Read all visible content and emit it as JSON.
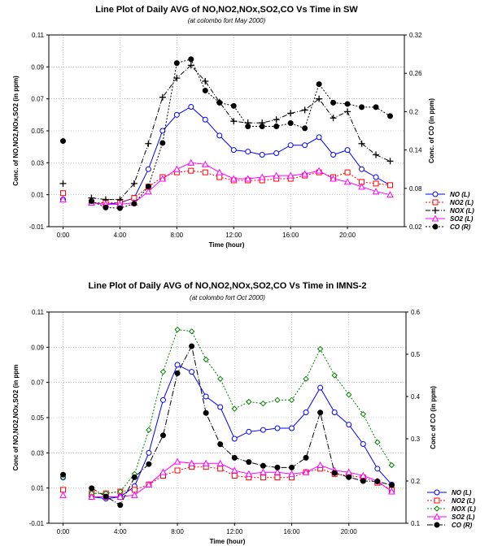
{
  "chart_data": [
    {
      "type": "line",
      "title": "Line Plot of Daily AVG of NO,NO2,NOx,SO2,CO Vs Time in SW",
      "subtitle": "(at colombo fort May 2000)",
      "xlabel": "Time (hour)",
      "ylabel_left": "Conc. of NO,NO2,NOx,SO2 (in ppm)",
      "ylabel_right": "Conc. of CO (in ppm)",
      "x_ticks": [
        "0:00",
        "4:00",
        "8:00",
        "12:00",
        "16:00",
        "20:00"
      ],
      "xlim": [
        -1,
        24
      ],
      "ylim_left": [
        -0.01,
        0.11
      ],
      "ylim_right": [
        0.02,
        0.32
      ],
      "y_ticks_left": [
        -0.01,
        0.01,
        0.03,
        0.05,
        0.07,
        0.09,
        0.11
      ],
      "y_ticks_right": [
        0.02,
        0.08,
        0.14,
        0.2,
        0.26,
        0.32
      ],
      "grid": true,
      "legend_position": "right",
      "series": [
        {
          "name": "NO (L)",
          "axis": "left",
          "color": "#0000ff",
          "dash": "",
          "marker": "circle-open",
          "x": [
            0,
            2,
            3,
            4,
            5,
            6,
            7,
            8,
            9,
            10,
            11,
            12,
            13,
            14,
            15,
            16,
            17,
            18,
            19,
            20,
            21,
            22,
            23
          ],
          "y": [
            0.007,
            0.005,
            0.004,
            0.005,
            0.008,
            0.026,
            0.05,
            0.06,
            0.065,
            0.057,
            0.047,
            0.038,
            0.037,
            0.035,
            0.036,
            0.041,
            0.041,
            0.046,
            0.035,
            0.038,
            0.026,
            0.021,
            0.016
          ]
        },
        {
          "name": "NO2 (L)",
          "axis": "left",
          "color": "#ff0000",
          "dash": "2,2",
          "marker": "square-open",
          "x": [
            0,
            2,
            3,
            4,
            5,
            6,
            7,
            8,
            9,
            10,
            11,
            12,
            13,
            14,
            15,
            16,
            17,
            18,
            19,
            20,
            21,
            22,
            23
          ],
          "y": [
            0.011,
            0.005,
            0.005,
            0.005,
            0.008,
            0.015,
            0.021,
            0.024,
            0.025,
            0.024,
            0.021,
            0.019,
            0.019,
            0.019,
            0.02,
            0.02,
            0.022,
            0.024,
            0.021,
            0.024,
            0.018,
            0.017,
            0.016
          ]
        },
        {
          "name": "NOX (L)",
          "axis": "left",
          "color": "#000000",
          "dash": "6,2,1,2",
          "marker": "plus",
          "x": [
            0,
            2,
            3,
            4,
            5,
            6,
            7,
            8,
            9,
            10,
            11,
            12,
            13,
            14,
            15,
            16,
            17,
            18,
            19,
            20,
            21,
            22,
            23
          ],
          "y": [
            0.017,
            0.008,
            0.007,
            0.007,
            0.017,
            0.042,
            0.071,
            0.083,
            0.091,
            0.081,
            0.068,
            0.056,
            0.055,
            0.055,
            0.057,
            0.061,
            0.063,
            0.07,
            0.058,
            0.062,
            0.042,
            0.035,
            0.031
          ]
        },
        {
          "name": "SO2 (L)",
          "axis": "left",
          "color": "#ff00ff",
          "dash": "",
          "marker": "triangle-open",
          "x": [
            0,
            2,
            3,
            4,
            5,
            6,
            7,
            8,
            9,
            10,
            11,
            12,
            13,
            14,
            15,
            16,
            17,
            18,
            19,
            20,
            21,
            22,
            23
          ],
          "y": [
            0.007,
            0.005,
            0.004,
            0.004,
            0.005,
            0.012,
            0.02,
            0.026,
            0.03,
            0.029,
            0.024,
            0.02,
            0.02,
            0.021,
            0.022,
            0.022,
            0.023,
            0.025,
            0.02,
            0.018,
            0.015,
            0.012,
            0.01
          ]
        },
        {
          "name": "CO (R)",
          "axis": "right",
          "color": "#000000",
          "dash": "2,2",
          "marker": "circle-filled",
          "x": [
            0,
            2,
            3,
            4,
            5,
            6,
            7,
            8,
            9,
            10,
            11,
            12,
            13,
            14,
            15,
            16,
            17,
            18,
            19,
            20,
            21,
            22,
            23
          ],
          "y": [
            0.154,
            0.06,
            0.05,
            0.049,
            0.056,
            0.083,
            0.151,
            0.276,
            0.282,
            0.233,
            0.214,
            0.209,
            0.177,
            0.177,
            0.177,
            0.182,
            0.174,
            0.243,
            0.214,
            0.212,
            0.207,
            0.207,
            0.193
          ]
        }
      ]
    },
    {
      "type": "line",
      "title": "Line Plot of Daily AVG of NO,NO2,NOx,SO2,CO Vs Time in IMNS-2",
      "subtitle": "(at colombo fort Oct 2000)",
      "xlabel": "Time (hour)",
      "ylabel_left": "Conc of NO,NO2,NOx,SO2 (in ppm",
      "ylabel_right": "Conc of CO (in ppm)",
      "x_ticks": [
        "0:00",
        "4:00",
        "8:00",
        "12:00",
        "16:00",
        "20:00"
      ],
      "xlim": [
        -1,
        24
      ],
      "ylim_left": [
        -0.01,
        0.11
      ],
      "ylim_right": [
        0.1,
        0.6
      ],
      "y_ticks_left": [
        -0.01,
        0.01,
        0.03,
        0.05,
        0.07,
        0.09,
        0.11
      ],
      "y_ticks_right": [
        0.1,
        0.2,
        0.3,
        0.4,
        0.5,
        0.6
      ],
      "grid": true,
      "legend_position": "right",
      "series": [
        {
          "name": "NO (L)",
          "axis": "left",
          "color": "#0000ff",
          "dash": "",
          "marker": "circle-open",
          "x": [
            0,
            2,
            3,
            4,
            5,
            6,
            7,
            8,
            9,
            10,
            11,
            12,
            13,
            14,
            15,
            16,
            17,
            18,
            19,
            20,
            21,
            22,
            23
          ],
          "y": [
            0.016,
            0.005,
            0.004,
            0.005,
            0.011,
            0.03,
            0.06,
            0.08,
            0.076,
            0.062,
            0.056,
            0.038,
            0.042,
            0.043,
            0.044,
            0.044,
            0.053,
            0.067,
            0.053,
            0.046,
            0.035,
            0.021,
            0.012
          ]
        },
        {
          "name": "NO2 (L)",
          "axis": "left",
          "color": "#ff0000",
          "dash": "2,2",
          "marker": "square-open",
          "x": [
            0,
            2,
            3,
            4,
            5,
            6,
            7,
            8,
            9,
            10,
            11,
            12,
            13,
            14,
            15,
            16,
            17,
            18,
            19,
            20,
            21,
            22,
            23
          ],
          "y": [
            0.009,
            0.007,
            0.007,
            0.008,
            0.009,
            0.012,
            0.017,
            0.02,
            0.022,
            0.022,
            0.021,
            0.017,
            0.016,
            0.016,
            0.016,
            0.016,
            0.019,
            0.021,
            0.018,
            0.017,
            0.016,
            0.013,
            0.009
          ]
        },
        {
          "name": "NOX (L)",
          "axis": "left",
          "color": "#008000",
          "dash": "2,2",
          "marker": "diamond-open",
          "x": [
            0,
            2,
            3,
            4,
            5,
            6,
            7,
            8,
            9,
            10,
            11,
            12,
            13,
            14,
            15,
            16,
            17,
            18,
            19,
            20,
            21,
            22,
            23
          ],
          "y": [
            0.016,
            0.007,
            0.007,
            0.008,
            0.018,
            0.043,
            0.076,
            0.1,
            0.099,
            0.083,
            0.072,
            0.055,
            0.059,
            0.058,
            0.06,
            0.06,
            0.072,
            0.089,
            0.074,
            0.063,
            0.052,
            0.036,
            0.023
          ]
        },
        {
          "name": "SO2 (L)",
          "axis": "left",
          "color": "#ff00ff",
          "dash": "",
          "marker": "triangle-open",
          "x": [
            0,
            2,
            3,
            4,
            5,
            6,
            7,
            8,
            9,
            10,
            11,
            12,
            13,
            14,
            15,
            16,
            17,
            18,
            19,
            20,
            21,
            22,
            23
          ],
          "y": [
            0.006,
            0.005,
            0.005,
            0.005,
            0.006,
            0.012,
            0.019,
            0.025,
            0.024,
            0.024,
            0.024,
            0.02,
            0.018,
            0.019,
            0.019,
            0.018,
            0.019,
            0.023,
            0.02,
            0.019,
            0.017,
            0.014,
            0.008
          ]
        },
        {
          "name": "CO (R)",
          "axis": "right",
          "color": "#000000",
          "dash": "7,2,1,2",
          "marker": "circle-filled",
          "x": [
            0,
            2,
            3,
            4,
            5,
            6,
            7,
            8,
            9,
            10,
            11,
            12,
            13,
            14,
            15,
            16,
            17,
            18,
            19,
            20,
            21,
            22,
            23
          ],
          "y": [
            0.215,
            0.183,
            0.163,
            0.143,
            0.209,
            0.24,
            0.308,
            0.455,
            0.519,
            0.361,
            0.287,
            0.255,
            0.245,
            0.236,
            0.232,
            0.232,
            0.255,
            0.362,
            0.219,
            0.209,
            0.2,
            0.199,
            0.19
          ]
        }
      ]
    }
  ]
}
